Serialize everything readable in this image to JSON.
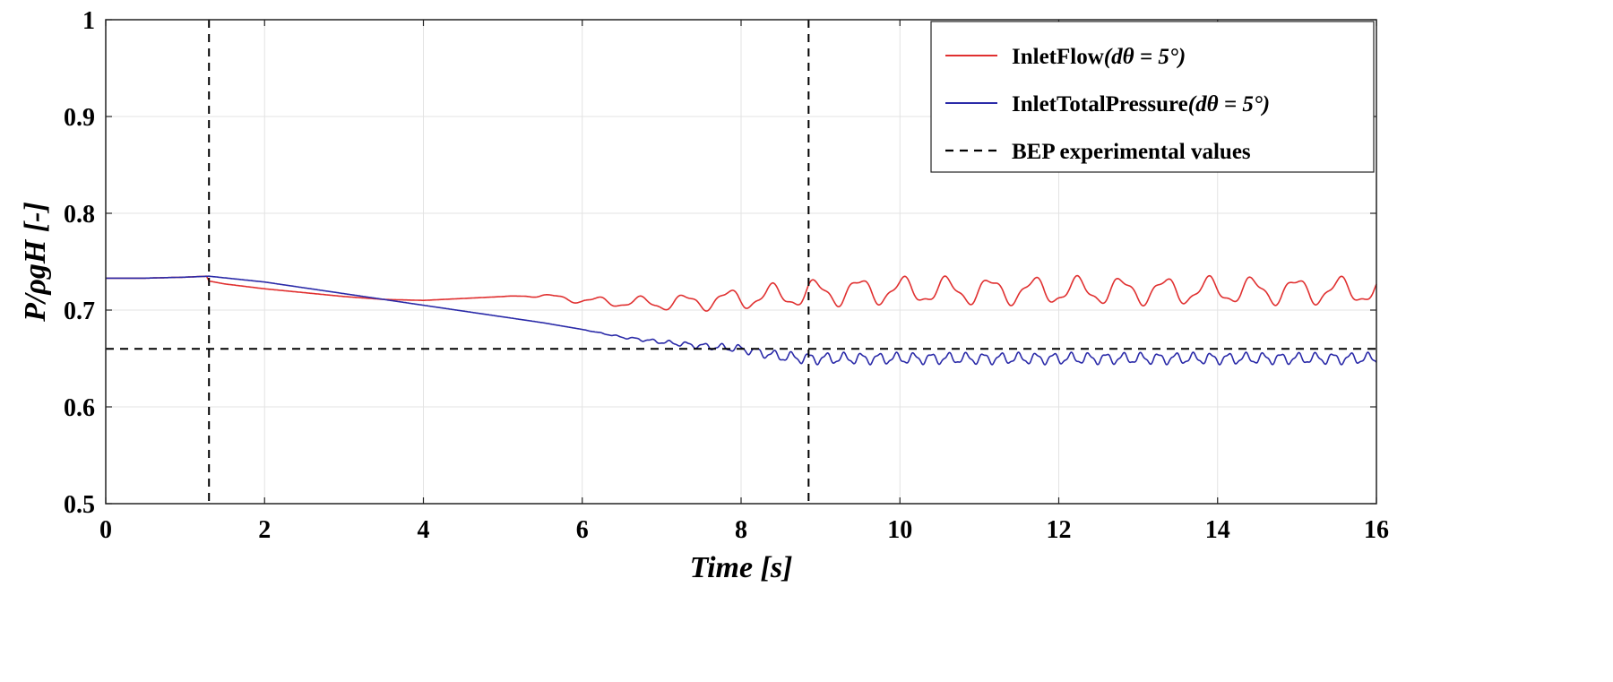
{
  "chart_data": {
    "type": "line",
    "title": "",
    "xlabel": "Time [s]",
    "ylabel": "P/ρgH [-]",
    "xlim": [
      0,
      16
    ],
    "ylim": [
      0.5,
      1.0
    ],
    "grid": true,
    "xticks": [
      0,
      2,
      4,
      6,
      8,
      10,
      12,
      14,
      16
    ],
    "xtick_labels": [
      "0",
      "2",
      "4",
      "6",
      "8",
      "10",
      "12",
      "14",
      "16"
    ],
    "yticks": [
      0.5,
      0.6,
      0.7,
      0.8,
      0.9,
      1.0
    ],
    "ytick_labels": [
      "0.5",
      "0.6",
      "0.7",
      "0.8",
      "0.9",
      "1"
    ],
    "legend_position": "top-right",
    "series": [
      {
        "name": "InletFlow",
        "name_suffix": "(dθ = 5°)",
        "color": "#e03030",
        "style": "solid",
        "x": [
          0,
          0.5,
          1.0,
          1.27,
          1.3,
          1.5,
          2.0,
          2.5,
          3.0,
          3.5,
          4.0,
          4.5,
          5.0,
          5.5,
          6.0,
          6.5,
          7.0,
          7.5,
          8.0,
          8.5,
          8.85,
          9.5,
          10.0,
          10.5,
          11.0,
          11.5,
          12.0,
          12.5,
          13.0,
          13.5,
          14.0,
          14.5,
          15.0,
          15.5,
          16.0
        ],
        "y": [
          0.733,
          0.733,
          0.734,
          0.735,
          0.73,
          0.727,
          0.722,
          0.718,
          0.714,
          0.711,
          0.71,
          0.712,
          0.714,
          0.715,
          0.71,
          0.708,
          0.707,
          0.709,
          0.712,
          0.715,
          0.717,
          0.72,
          0.72,
          0.72,
          0.72,
          0.72,
          0.72,
          0.72,
          0.72,
          0.72,
          0.72,
          0.72,
          0.72,
          0.72,
          0.72
        ],
        "oscillation": {
          "start": 5.0,
          "full_at": 8.85,
          "amplitude": 0.012,
          "period": 0.55
        }
      },
      {
        "name": "InletTotalPressure",
        "name_suffix": "(dθ = 5°)",
        "color": "#2a2aa8",
        "style": "solid",
        "x": [
          0,
          0.5,
          1.0,
          1.3,
          2.0,
          2.5,
          3.0,
          3.5,
          4.0,
          4.5,
          5.0,
          5.5,
          6.0,
          6.5,
          7.0,
          7.5,
          8.0,
          8.5,
          8.85,
          9.5,
          10.0,
          11.0,
          12.0,
          13.0,
          14.0,
          15.0,
          16.0
        ],
        "y": [
          0.733,
          0.733,
          0.734,
          0.735,
          0.729,
          0.723,
          0.717,
          0.711,
          0.705,
          0.699,
          0.693,
          0.687,
          0.68,
          0.672,
          0.667,
          0.663,
          0.66,
          0.652,
          0.65,
          0.65,
          0.65,
          0.65,
          0.65,
          0.65,
          0.65,
          0.65,
          0.65
        ],
        "oscillation": {
          "start": 6.0,
          "full_at": 8.85,
          "amplitude": 0.005,
          "period": 0.22
        }
      },
      {
        "name": "BEP experimental values",
        "color": "#000000",
        "style": "dashed",
        "horizontal_y": 0.66,
        "vertical_x": [
          1.3,
          8.85
        ]
      }
    ]
  }
}
